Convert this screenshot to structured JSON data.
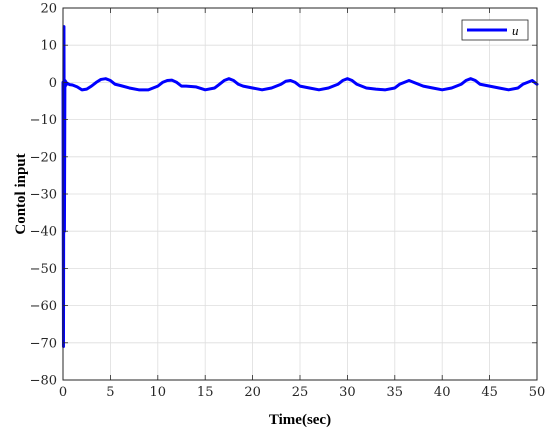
{
  "chart_data": {
    "type": "line",
    "xlabel": "Time(sec)",
    "ylabel": "Contol input",
    "xlim": [
      0,
      50
    ],
    "ylim": [
      -80,
      20
    ],
    "xticks": [
      0,
      5,
      10,
      15,
      20,
      25,
      30,
      35,
      40,
      45,
      50
    ],
    "yticks": [
      20,
      10,
      0,
      -10,
      -20,
      -30,
      -40,
      -50,
      -60,
      -70,
      -80
    ],
    "xtick_labels": [
      "0",
      "5",
      "10",
      "15",
      "20",
      "25",
      "30",
      "35",
      "40",
      "45",
      "50"
    ],
    "ytick_labels": [
      "20",
      "10",
      "0",
      "−10",
      "−20",
      "−30",
      "−40",
      "−50",
      "−60",
      "−70",
      "−80"
    ],
    "grid": true,
    "legend_position": "top-right",
    "series": [
      {
        "name": "u",
        "color": "#0000ff",
        "x": [
          0,
          0.05,
          0.1,
          0.15,
          0.2,
          0.25,
          0.3,
          0.4,
          0.5,
          0.7,
          1,
          1.5,
          2,
          2.5,
          3,
          3.5,
          4,
          4.5,
          5,
          5.5,
          6,
          7,
          8,
          9,
          10,
          10.5,
          11,
          11.5,
          12,
          12.5,
          13,
          14,
          15,
          16,
          16.5,
          17,
          17.5,
          18,
          18.5,
          19,
          20,
          21,
          22,
          23,
          23.5,
          24,
          24.5,
          25,
          26,
          27,
          28,
          29,
          29.5,
          30,
          30.5,
          31,
          32,
          33,
          34,
          35,
          35.5,
          36,
          36.5,
          37,
          38,
          39,
          40,
          41,
          42,
          42.5,
          43,
          43.5,
          44,
          45,
          46,
          47,
          48,
          48.5,
          49,
          49.5,
          50
        ],
        "y": [
          0,
          -71,
          15,
          -40,
          0.5,
          -1,
          0.2,
          -0.5,
          -0.3,
          -0.6,
          -0.7,
          -1.2,
          -2,
          -1.8,
          -1,
          0,
          0.8,
          1,
          0.5,
          -0.5,
          -0.8,
          -1.5,
          -2,
          -2,
          -1,
          0,
          0.5,
          0.6,
          0,
          -1,
          -1,
          -1.2,
          -2,
          -1.5,
          -0.5,
          0.5,
          1,
          0.5,
          -0.5,
          -1,
          -1.5,
          -2,
          -1.5,
          -0.5,
          0.3,
          0.5,
          0,
          -1,
          -1.5,
          -2,
          -1.5,
          -0.5,
          0.5,
          1,
          0.5,
          -0.5,
          -1.5,
          -1.8,
          -2,
          -1.5,
          -0.5,
          0,
          0.5,
          0,
          -1,
          -1.5,
          -2,
          -1.5,
          -0.5,
          0.5,
          1,
          0.5,
          -0.5,
          -1,
          -1.5,
          -2,
          -1.5,
          -0.5,
          0,
          0.5,
          -0.5
        ]
      }
    ]
  }
}
